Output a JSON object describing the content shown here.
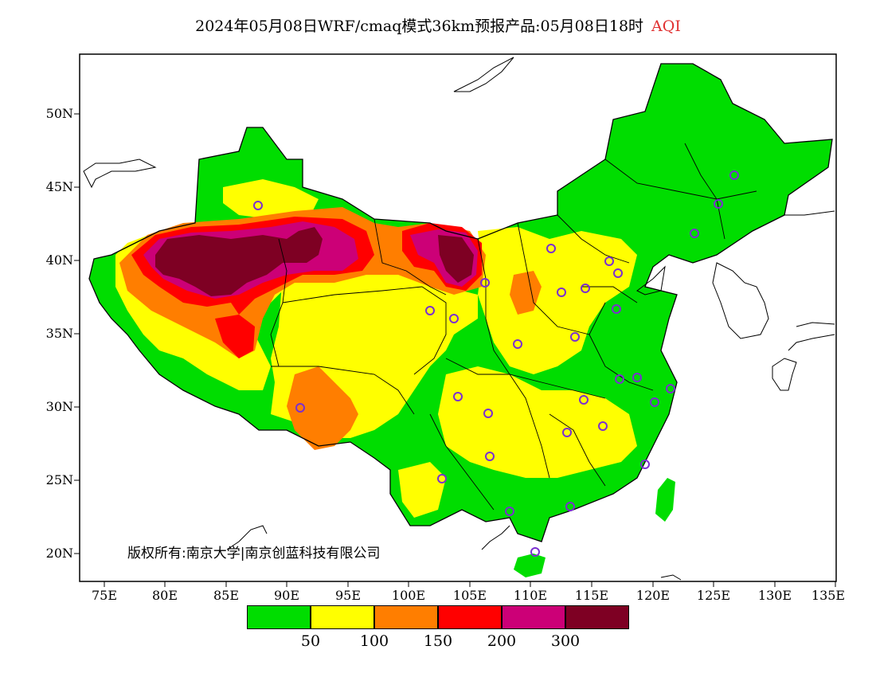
{
  "header": {
    "title": "2024年05月08日WRF/cmaq模式36km预报产品:05月08日18时",
    "product": "AQI"
  },
  "axes": {
    "lat_labels": [
      "50N",
      "45N",
      "40N",
      "35N",
      "30N",
      "25N",
      "20N"
    ],
    "lon_labels": [
      "75E",
      "80E",
      "85E",
      "90E",
      "95E",
      "100E",
      "105E",
      "110E",
      "115E",
      "120E",
      "125E",
      "130E",
      "135E"
    ]
  },
  "copyright": "版权所有:南京大学|南京创蓝科技有限公司",
  "legend": {
    "colors": [
      "#00dd00",
      "#ffff00",
      "#ff7e00",
      "#ff0000",
      "#cc0077",
      "#7e0023"
    ],
    "labels": [
      "50",
      "100",
      "150",
      "200",
      "300"
    ]
  },
  "colors": {
    "green": "#00dd00",
    "yellow": "#ffff00",
    "orange": "#ff7e00",
    "red": "#ff0000",
    "purple": "#cc0077",
    "maroon": "#7e0023",
    "station": "#7b2fd0"
  }
}
